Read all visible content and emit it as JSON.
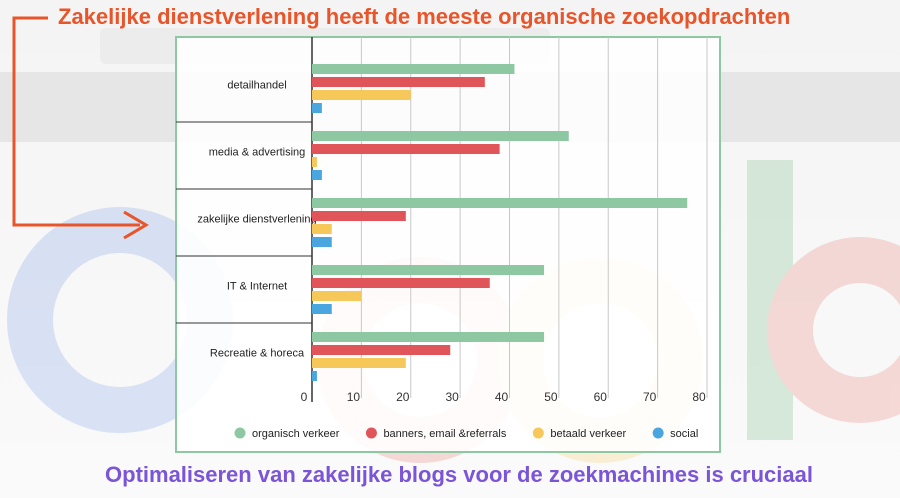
{
  "chart_data": {
    "type": "bar",
    "orientation": "horizontal",
    "title": "Zakelijke dienstverlening heeft de meeste organische zoekopdrachten",
    "caption": "Optimaliseren van zakelijke blogs voor de zoekmachines is cruciaal",
    "categories": [
      "detailhandel",
      "media & advertising",
      "zakelijke dienstverlening",
      "IT & Internet",
      "Recreatie & horeca"
    ],
    "series": [
      {
        "name": "organisch verkeer",
        "color": "#8dc8a3",
        "values": [
          41,
          52,
          76,
          47,
          47
        ]
      },
      {
        "name": "banners, email &referrals",
        "color": "#e0555a",
        "values": [
          35,
          38,
          19,
          36,
          28
        ]
      },
      {
        "name": "betaald verkeer",
        "color": "#f6c85a",
        "values": [
          20,
          1,
          4,
          10,
          19
        ]
      },
      {
        "name": "social",
        "color": "#4aa6de",
        "values": [
          2,
          2,
          4,
          4,
          1
        ]
      }
    ],
    "xlim": [
      0,
      80
    ],
    "xticks": [
      0,
      10,
      20,
      30,
      40,
      50,
      60,
      70,
      80
    ],
    "grid": true,
    "legend": "bottom"
  }
}
